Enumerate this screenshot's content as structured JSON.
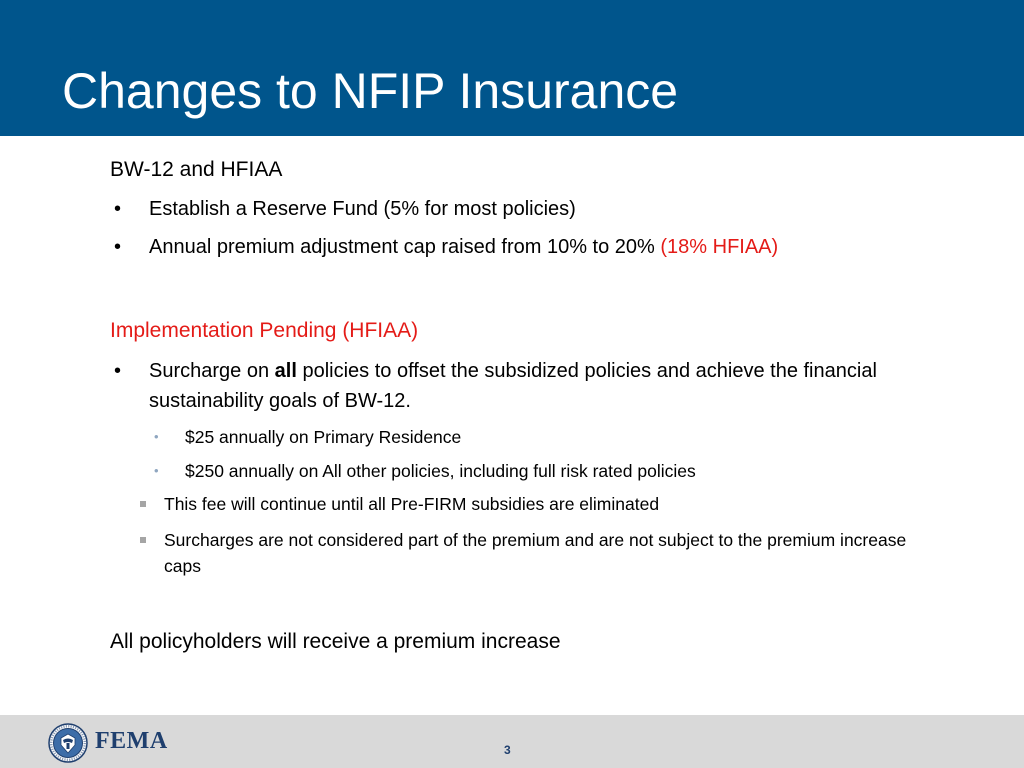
{
  "title": "Changes to NFIP Insurance",
  "section1": {
    "heading": "BW-12 and HFIAA",
    "bullets": [
      {
        "text": "Establish a Reserve Fund (5% for most policies)"
      },
      {
        "text": "Annual premium adjustment cap raised  from 10% to 20%",
        "note": "(18% HFIAA)"
      }
    ]
  },
  "section2": {
    "heading": "Implementation Pending (HFIAA)",
    "bullet": {
      "prefix": "Surcharge on ",
      "bold": "all",
      "suffix": " policies to offset the subsidized policies and achieve the financial sustainability goals of BW-12."
    },
    "sub_bullets": [
      "$25 annually on Primary Residence",
      "$250 annually on All other policies, including full risk rated policies"
    ],
    "square_bullets": [
      "This fee will continue until all Pre-FIRM subsidies are eliminated",
      "Surcharges are not considered part of the premium and are not subject to the premium increase caps"
    ]
  },
  "closing": "All policyholders will receive a premium increase",
  "footer": {
    "logo_text": "FEMA",
    "seal_icon": "dhs-seal-icon",
    "page_number": "3"
  },
  "colors": {
    "header_blue": "#00558c",
    "accent_red": "#e41b17",
    "footer_gray": "#d9d9d9"
  }
}
